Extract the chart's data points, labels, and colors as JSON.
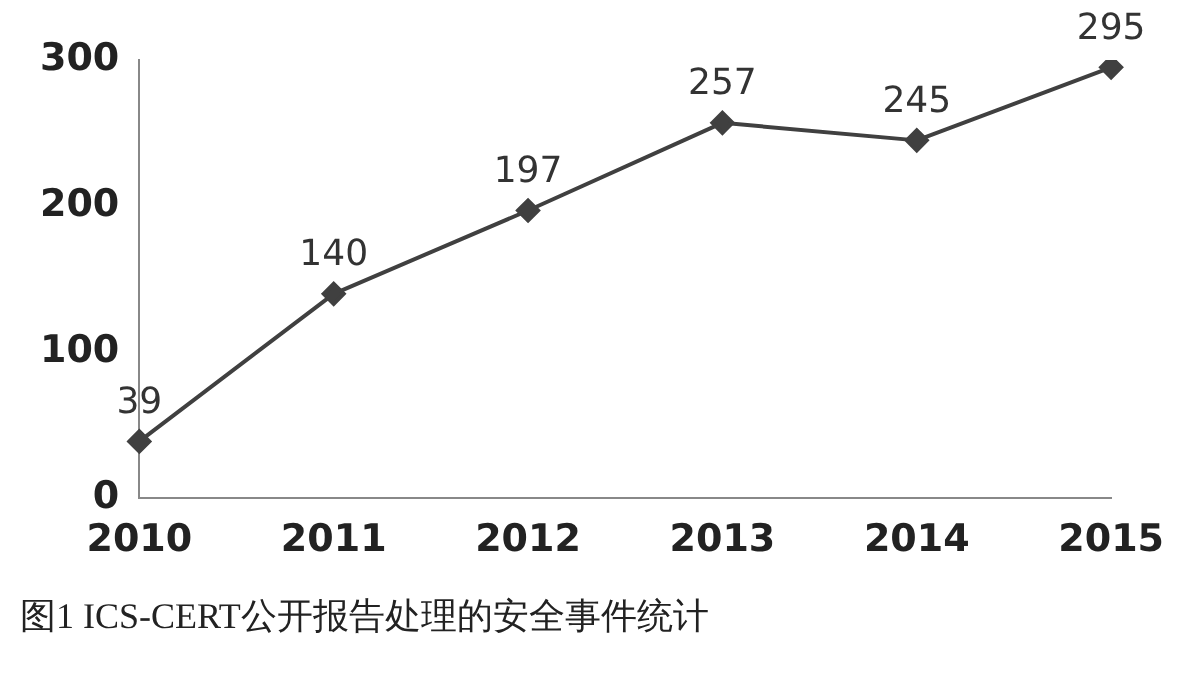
{
  "chart_data": {
    "type": "line",
    "categories": [
      "2010",
      "2011",
      "2012",
      "2013",
      "2014",
      "2015"
    ],
    "values": [
      39,
      140,
      197,
      257,
      245,
      295
    ],
    "color": "#404040",
    "ylim": [
      0,
      300
    ],
    "yticks": [
      0,
      100,
      200,
      300
    ],
    "grid": false,
    "marker": "diamond",
    "line_style": "solid",
    "data_labels": true,
    "annotations": [
      "图1 ICS-CERT公开报告处理的安全事件统计"
    ]
  }
}
